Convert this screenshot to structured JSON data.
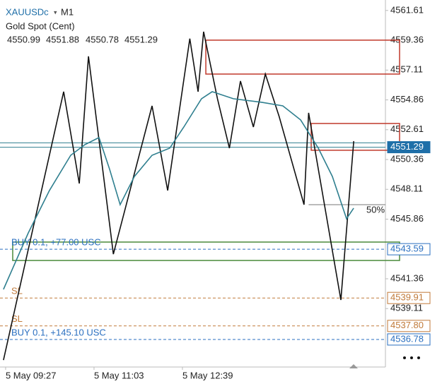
{
  "chart_data": {
    "type": "line",
    "symbol": "XAUUSDc",
    "timeframe": "M1",
    "subtitle": "Gold Spot (Cent)",
    "ohlc": [
      4550.99,
      4551.88,
      4550.78,
      4551.29
    ],
    "xlim": [
      -6.1,
      412.4
    ],
    "xticks": [
      {
        "value": 0,
        "label": "5 May 09:27"
      },
      {
        "value": 96,
        "label": "5 May 11:03"
      },
      {
        "value": 192,
        "label": "5 May 12:39"
      }
    ],
    "ylim": [
      4534.7,
      4562.4
    ],
    "yticks": [
      4561.61,
      4559.36,
      4557.11,
      4554.86,
      4552.61,
      4550.36,
      4548.11,
      4545.86,
      4541.36,
      4539.11
    ],
    "series": [
      {
        "color": "#111111",
        "x": [
          -2.3,
          63,
          80,
          90,
          117,
          159,
          176,
          200,
          209,
          215,
          230,
          243,
          255,
          269,
          282,
          297,
          324,
          329,
          364,
          378
        ],
        "values": [
          4535.22,
          4555.48,
          4548.55,
          4558.15,
          4543.22,
          4554.41,
          4548.02,
          4559.48,
          4555.48,
          4560.01,
          4554.95,
          4551.22,
          4556.28,
          4552.81,
          4556.81,
          4553.61,
          4546.95,
          4553.88,
          4539.76,
          4551.75
        ]
      },
      {
        "color": "#2f7f8f",
        "x": [
          -2.3,
          24.6,
          47.6,
          70.7,
          86,
          101.4,
          112.9,
          124.4,
          139.8,
          159,
          178.2,
          193.5,
          212.7,
          224.3,
          247.3,
          278,
          301,
          320.3,
          339.5,
          354.8,
          370.2,
          377.9
        ],
        "values": [
          4540.56,
          4544.82,
          4548.02,
          4550.68,
          4551.48,
          4552.02,
          4549.62,
          4546.95,
          4549.08,
          4550.68,
          4551.22,
          4552.81,
          4554.95,
          4555.48,
          4554.95,
          4554.68,
          4554.41,
          4553.35,
          4551.22,
          4549.08,
          4545.89,
          4546.69
        ]
      }
    ],
    "ask_line": 4551.62,
    "price_labels": [
      {
        "value": 4551.29,
        "color": "#1f6fa8",
        "filled": true
      },
      {
        "value": 4543.59,
        "color": "#2a6fc0",
        "filled": false
      },
      {
        "value": 4539.91,
        "color": "#c07a3a",
        "filled": false
      },
      {
        "value": {
          "value": 4537.8,
          "label": "4537.80"
        },
        "color": "#c07a3a",
        "filled": false
      },
      {
        "value": 4536.78,
        "color": "#2a6fc0",
        "filled": false
      }
    ],
    "orders": [
      {
        "label": "BUY 0.1,    +77.00 USC",
        "price_label": 1
      },
      {
        "label": "SL",
        "price_label": 2
      },
      {
        "label": "SL",
        "price_label": 3
      },
      {
        "label": "BUY 0.1,    +145.10 USC",
        "price_label": 4
      }
    ],
    "zones": [
      {
        "ylim": [
          4556.81,
          4559.37
        ],
        "start": 217.4,
        "color": "#c0392b"
      },
      {
        "ylim": [
          4551.06,
          4553.08
        ],
        "start": 331.8,
        "color": "#c0392b"
      },
      {
        "ylim": [
          4542.74,
          4544.13
        ],
        "start": 7.7,
        "color": "#4a8a3a"
      }
    ],
    "level": {
      "value": 4546.95,
      "label": "50%",
      "start": 329
    }
  }
}
